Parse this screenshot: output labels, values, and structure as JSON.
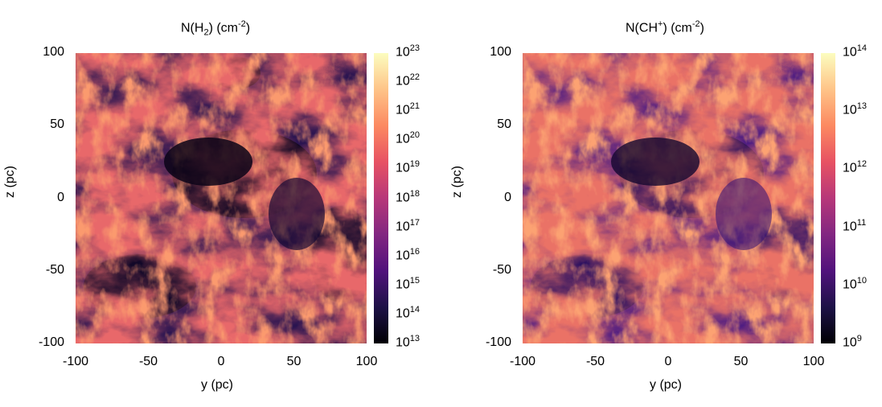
{
  "chart_data": [
    {
      "type": "heatmap",
      "title_main": "N(H",
      "title_sub": "2",
      "title_mid": ")  (cm",
      "title_sup": "-2",
      "title_end": ")",
      "xlabel": "y (pc)",
      "ylabel": "z (pc)",
      "xlim": [
        -100,
        100
      ],
      "ylim": [
        -100,
        100
      ],
      "x_ticks": [
        "-100",
        "-50",
        "0",
        "50",
        "100"
      ],
      "y_ticks": [
        "100",
        "50",
        "0",
        "-50",
        "-100"
      ],
      "colorbar": {
        "scale": "log",
        "range": [
          10000000000000.0,
          1e+23
        ],
        "tick_base": "10",
        "tick_exponents": [
          "23",
          "22",
          "21",
          "20",
          "19",
          "18",
          "17",
          "16",
          "15",
          "14",
          "13"
        ]
      },
      "colormap": [
        "#000004",
        "#1d1147",
        "#51127c",
        "#822681",
        "#b73779",
        "#e75263",
        "#fc8961",
        "#fec488",
        "#fcfdbf"
      ]
    },
    {
      "type": "heatmap",
      "title_main": "N(CH",
      "title_sup1": "+",
      "title_mid": ")  (cm",
      "title_sup": "-2",
      "title_end": ")",
      "xlabel": "y (pc)",
      "ylabel": "z (pc)",
      "xlim": [
        -100,
        100
      ],
      "ylim": [
        -100,
        100
      ],
      "x_ticks": [
        "-100",
        "-50",
        "0",
        "50",
        "100"
      ],
      "y_ticks": [
        "100",
        "50",
        "0",
        "-50",
        "-100"
      ],
      "colorbar": {
        "scale": "log",
        "range": [
          1000000000.0,
          100000000000000.0
        ],
        "tick_base": "10",
        "tick_exponents": [
          "14",
          "13",
          "12",
          "11",
          "10",
          "9"
        ]
      },
      "colormap": [
        "#000004",
        "#1d1147",
        "#51127c",
        "#822681",
        "#b73779",
        "#e75263",
        "#fc8961",
        "#fec488",
        "#fcfdbf"
      ]
    }
  ]
}
